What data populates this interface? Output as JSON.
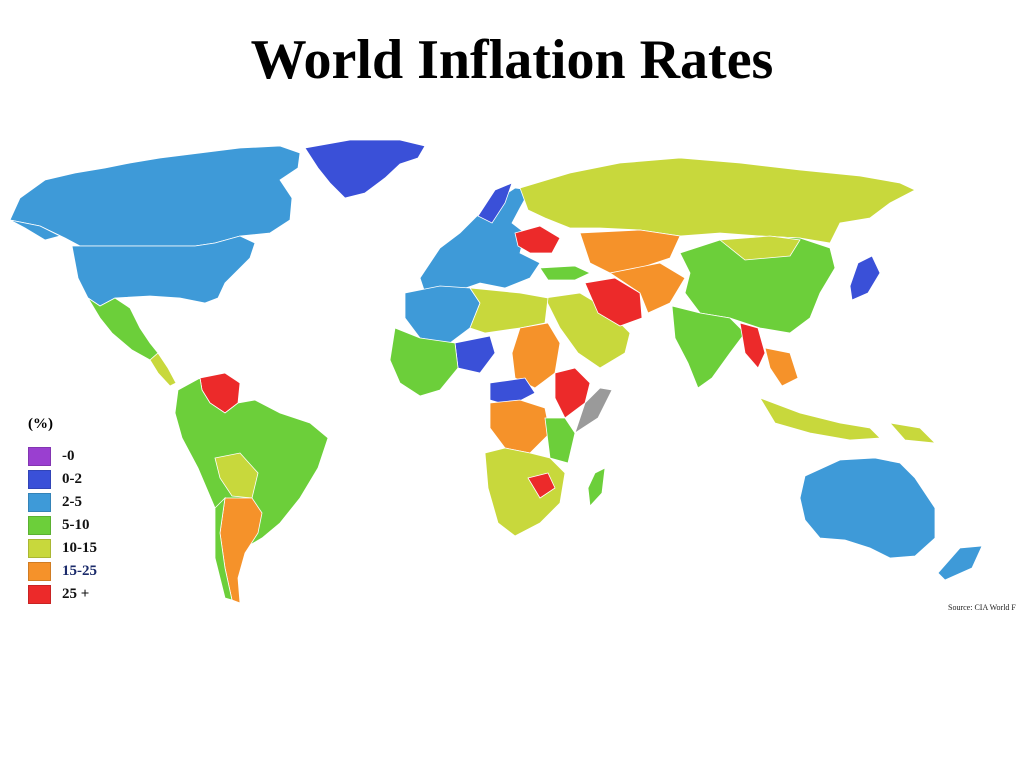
{
  "slide": {
    "title": "World Inflation Rates"
  },
  "legend": {
    "title": "(%)",
    "items": [
      {
        "label": "-0",
        "color": "#9a3fd0"
      },
      {
        "label": "0-2",
        "color": "#3a50d8"
      },
      {
        "label": "2-5",
        "color": "#3e9ad8"
      },
      {
        "label": "5-10",
        "color": "#6ccf3a"
      },
      {
        "label": "10-15",
        "color": "#c8d83c"
      },
      {
        "label": "15-25",
        "color": "#f5922a"
      },
      {
        "label": "25 +",
        "color": "#ec2a2a"
      }
    ]
  },
  "no_data_color": "#9a9a9a",
  "source": "Source: CIA World F"
}
